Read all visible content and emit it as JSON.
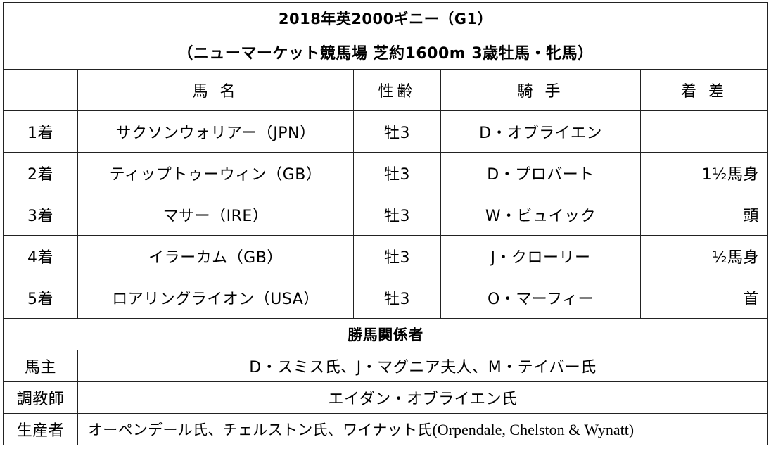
{
  "title": {
    "line1": "2018年英2000ギニー（G1）",
    "line2": "（ニューマーケット競馬場 芝約1600m 3歳牡馬・牝馬）"
  },
  "headers": {
    "horse": "馬 名",
    "age": "性齢",
    "jockey": "騎 手",
    "margin": "着 差"
  },
  "results": [
    {
      "rank": "1着",
      "horse": "サクソンウォリアー（JPN）",
      "age": "牡3",
      "jockey": "D・オブライエン",
      "margin": ""
    },
    {
      "rank": "2着",
      "horse": "ティップトゥーウィン（GB）",
      "age": "牡3",
      "jockey": "D・プロバート",
      "margin": "1½馬身"
    },
    {
      "rank": "3着",
      "horse": "マサー（IRE）",
      "age": "牡3",
      "jockey": "W・ビュイック",
      "margin": "頭"
    },
    {
      "rank": "4着",
      "horse": "イラーカム（GB）",
      "age": "牡3",
      "jockey": "J・クローリー",
      "margin": "½馬身"
    },
    {
      "rank": "5着",
      "horse": "ロアリングライオン（USA）",
      "age": "牡3",
      "jockey": "O・マーフィー",
      "margin": "首"
    }
  ],
  "connections": {
    "heading": "勝馬関係者",
    "owner_label": "馬主",
    "owner": "D・スミス氏、J・マグニア夫人、M・テイバー氏",
    "trainer_label": "調教師",
    "trainer": "エイダン・オブライエン氏",
    "breeder_label": "生産者",
    "breeder_jp": "オーペンデール氏、チェルストン氏、ワイナット氏",
    "breeder_en": "(Orpendale, Chelston & Wynatt)"
  }
}
